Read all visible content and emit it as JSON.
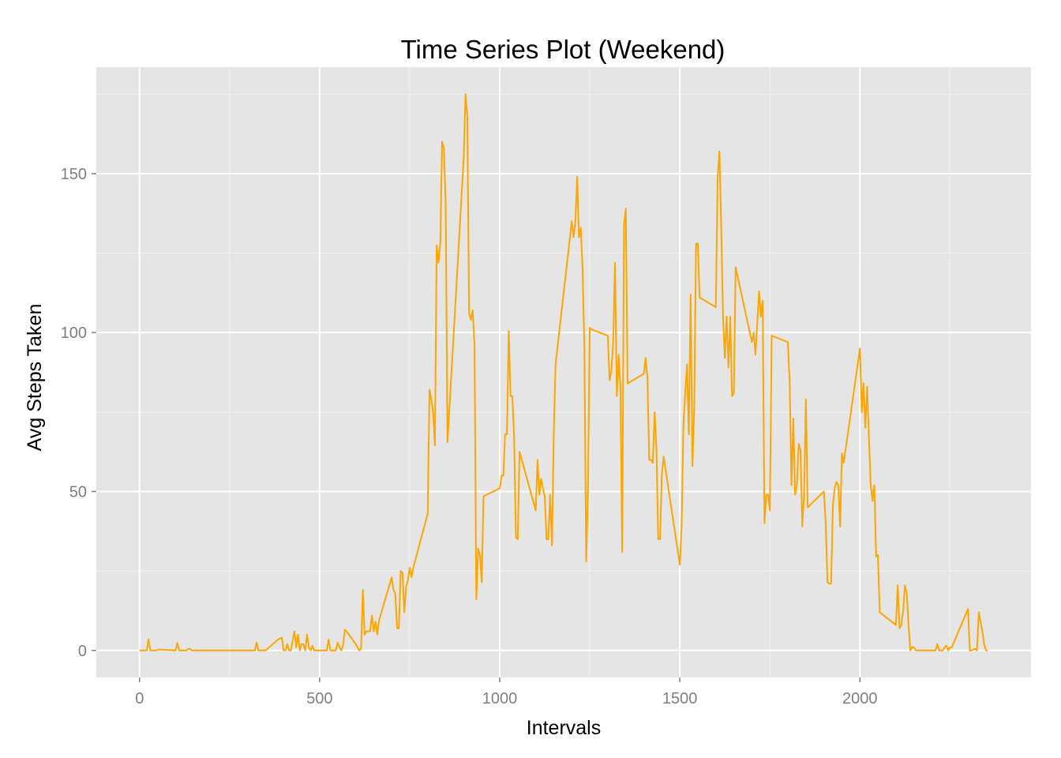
{
  "chart_data": {
    "type": "line",
    "title": "Time Series Plot (Weekend)",
    "xlabel": "Intervals",
    "ylabel": "Avg Steps Taken",
    "xlim": [
      -120,
      2475
    ],
    "ylim": [
      -8.5,
      183.5
    ],
    "x_ticks": [
      0,
      500,
      1000,
      1500,
      2000
    ],
    "y_ticks": [
      0,
      50,
      100,
      150
    ],
    "x_tick_labels": [
      "0",
      "500",
      "1000",
      "1500",
      "2000"
    ],
    "y_tick_labels": [
      "0",
      "50",
      "100",
      "150"
    ],
    "grid": true,
    "colors": {
      "line": "#FFA500",
      "panel_background": "#E5E5E5",
      "grid_major": "#FFFFFF",
      "grid_minor": "#F2F2F2",
      "tick_label": "#7F7F7F"
    },
    "series": [
      {
        "x": [
          0,
          20,
          25,
          30,
          45,
          55,
          100,
          105,
          110,
          115,
          130,
          135,
          140,
          145,
          150,
          200,
          250,
          300,
          320,
          325,
          330,
          340,
          345,
          350,
          385,
          395,
          400,
          405,
          410,
          415,
          420,
          430,
          435,
          440,
          445,
          450,
          455,
          460,
          465,
          470,
          475,
          480,
          485,
          495,
          505,
          510,
          515,
          520,
          525,
          530,
          540,
          545,
          550,
          555,
          560,
          565,
          570,
          575,
          600,
          610,
          615,
          620,
          625,
          630,
          635,
          640,
          645,
          650,
          655,
          660,
          665,
          700,
          705,
          710,
          715,
          720,
          725,
          730,
          735,
          740,
          745,
          750,
          755,
          760,
          800,
          805,
          810,
          815,
          820,
          825,
          830,
          835,
          840,
          845,
          850,
          855,
          900,
          905,
          910,
          915,
          920,
          925,
          930,
          935,
          940,
          945,
          950,
          955,
          1000,
          1005,
          1010,
          1015,
          1020,
          1025,
          1030,
          1035,
          1040,
          1045,
          1050,
          1055,
          1100,
          1105,
          1110,
          1115,
          1120,
          1125,
          1130,
          1135,
          1140,
          1145,
          1150,
          1155,
          1200,
          1205,
          1210,
          1215,
          1220,
          1225,
          1230,
          1235,
          1240,
          1245,
          1250,
          1255,
          1300,
          1305,
          1310,
          1315,
          1320,
          1325,
          1330,
          1335,
          1340,
          1345,
          1350,
          1355,
          1400,
          1405,
          1410,
          1415,
          1420,
          1425,
          1430,
          1435,
          1440,
          1445,
          1450,
          1455,
          1500,
          1505,
          1510,
          1515,
          1520,
          1525,
          1530,
          1535,
          1540,
          1545,
          1550,
          1555,
          1600,
          1605,
          1610,
          1615,
          1620,
          1625,
          1630,
          1635,
          1640,
          1645,
          1650,
          1655,
          1700,
          1705,
          1710,
          1715,
          1720,
          1725,
          1730,
          1735,
          1740,
          1745,
          1750,
          1755,
          1800,
          1805,
          1810,
          1815,
          1820,
          1825,
          1830,
          1835,
          1840,
          1845,
          1850,
          1855,
          1900,
          1905,
          1910,
          1915,
          1920,
          1925,
          1930,
          1935,
          1940,
          1945,
          1950,
          1955,
          2000,
          2005,
          2010,
          2015,
          2020,
          2025,
          2030,
          2035,
          2040,
          2045,
          2050,
          2055,
          2100,
          2105,
          2110,
          2115,
          2120,
          2125,
          2130,
          2135,
          2140,
          2145,
          2150,
          2155,
          2200,
          2205,
          2210,
          2215,
          2220,
          2225,
          2230,
          2235,
          2240,
          2245,
          2250,
          2255,
          2300,
          2305,
          2310,
          2315,
          2320,
          2325,
          2330,
          2335,
          2340,
          2345,
          2350,
          2355
        ],
        "y": [
          0,
          0,
          3.5,
          0,
          0,
          0.3,
          0,
          2.3,
          0,
          0,
          0,
          0.5,
          0.5,
          0,
          0,
          0,
          0,
          0,
          0,
          2.5,
          0,
          0,
          0,
          0,
          3.5,
          4,
          0,
          0,
          2,
          0,
          0,
          6,
          1,
          5,
          0,
          2,
          2,
          0,
          5,
          1,
          0,
          1.5,
          0,
          0,
          0,
          0,
          0,
          0,
          3.5,
          0,
          0,
          0,
          2.5,
          1,
          0,
          1.5,
          6.5,
          6,
          2,
          0,
          0.5,
          19,
          5,
          6,
          6,
          6,
          11,
          6,
          9,
          5,
          9.5,
          23,
          19,
          18,
          7,
          7,
          25,
          24.5,
          12,
          20,
          22,
          26,
          23,
          26,
          43,
          82,
          79,
          75,
          64.5,
          127.5,
          122,
          128,
          160,
          158,
          140,
          65.5,
          155,
          175,
          168,
          106,
          104,
          107,
          96,
          16,
          32,
          30,
          21.5,
          48.5,
          51,
          55,
          55,
          68,
          68,
          100.5,
          80,
          80,
          67,
          35.5,
          35,
          62.5,
          44,
          60,
          49,
          54,
          51,
          48.5,
          35,
          35,
          49,
          33,
          68,
          90,
          135,
          130,
          135,
          149,
          130,
          133,
          120,
          95,
          28,
          50,
          101.5,
          101,
          99,
          85,
          88,
          97,
          122,
          80,
          93,
          83,
          31,
          134,
          139,
          84,
          87,
          92,
          86,
          60,
          60,
          59,
          75,
          64,
          35,
          35,
          55,
          61,
          27,
          39,
          71,
          81,
          90,
          68,
          112,
          58,
          76,
          128,
          128,
          111,
          108,
          149,
          157,
          133,
          105,
          92,
          105,
          89,
          105,
          80,
          81,
          120.5,
          97,
          100,
          93,
          103,
          113,
          105,
          110,
          40,
          49,
          49,
          44,
          99,
          97,
          84,
          52,
          73,
          49,
          52,
          65,
          63,
          39,
          49,
          79,
          45,
          50,
          40,
          21.5,
          21,
          21,
          46,
          51,
          53,
          52,
          39,
          62,
          59,
          95,
          75,
          84,
          70,
          83,
          67,
          52,
          47,
          52,
          29.5,
          30,
          12,
          8,
          20.5,
          7,
          8,
          12.5,
          20.5,
          18,
          8,
          0,
          1,
          1,
          0,
          0,
          0,
          0,
          2,
          0,
          0,
          0,
          1,
          1.5,
          0,
          1,
          1,
          13,
          0,
          0,
          0.3,
          0.5,
          0,
          12,
          9,
          6,
          2,
          0,
          0
        ]
      }
    ]
  }
}
